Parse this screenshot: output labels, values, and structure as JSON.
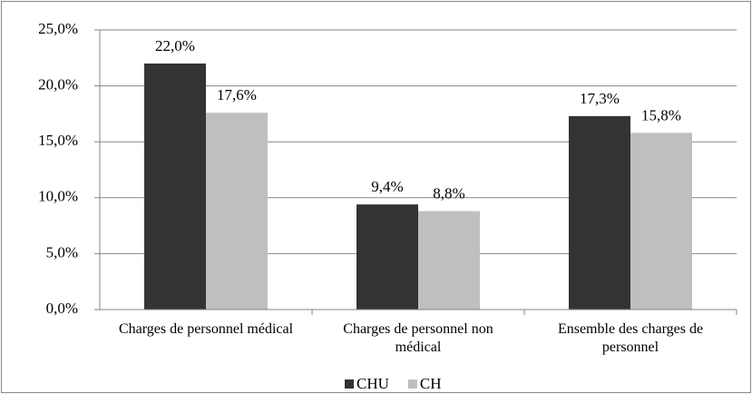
{
  "chart_data": {
    "type": "bar",
    "categories": [
      "Charges de personnel médical",
      "Charges de personnel non médical",
      "Ensemble des charges de personnel"
    ],
    "series": [
      {
        "name": "CHU",
        "color": "#333333",
        "values": [
          22.0,
          9.4,
          17.3
        ],
        "value_labels": [
          "22,0%",
          "9,4%",
          "17,3%"
        ]
      },
      {
        "name": "CH",
        "color": "#bfbfbf",
        "values": [
          17.6,
          8.8,
          15.8
        ],
        "value_labels": [
          "17,6%",
          "8,8%",
          "15,8%"
        ]
      }
    ],
    "ylim": [
      0,
      25
    ],
    "yticks": [
      {
        "value": 0,
        "label": "0,0%"
      },
      {
        "value": 5,
        "label": "5,0%"
      },
      {
        "value": 10,
        "label": "10,0%"
      },
      {
        "value": 15,
        "label": "15,0%"
      },
      {
        "value": 20,
        "label": "20,0%"
      },
      {
        "value": 25,
        "label": "25,0%"
      }
    ],
    "grid": true,
    "legend": "bottom"
  }
}
